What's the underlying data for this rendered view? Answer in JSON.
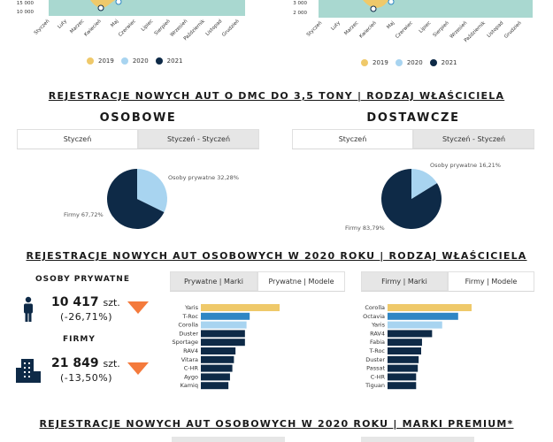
{
  "top_charts": {
    "left_y_ticks": [
      "15 000",
      "10 000"
    ],
    "right_y_ticks": [
      "3 000"
    ],
    "months": [
      "Styczeń",
      "Luty",
      "Marzec",
      "Kwiecień",
      "Maj",
      "Czerwiec",
      "Lipiec",
      "Sierpień",
      "Wrzesień",
      "Październik",
      "Listopad",
      "Grudzień"
    ],
    "legend": [
      "2019",
      "2020",
      "2021"
    ],
    "colors": {
      "y2019": "#efc96a",
      "y2020": "#a8d4f0",
      "y2021": "#0e2a47",
      "area": "#a9d8d0"
    }
  },
  "section1": {
    "title": "REJESTRACJE NOWYCH AUT O DMC DO 3,5 TONY | RODZAJ WŁAŚCICIELA",
    "left": {
      "title": "OSOBOWE",
      "tabs": [
        "Styczeń",
        "Styczeń - Styczeń"
      ],
      "active_tab": 0,
      "private_label": "Osoby prywatne 32,28%",
      "company_label": "Firmy 67,72%"
    },
    "right": {
      "title": "DOSTAWCZE",
      "tabs": [
        "Styczeń",
        "Styczeń - Styczeń"
      ],
      "active_tab": 0,
      "private_label": "Osoby prywatne 16,21%",
      "company_label": "Firmy 83,79%"
    }
  },
  "section2": {
    "title": "REJESTRACJE NOWYCH AUT OSOBOWYCH W 2020 ROKU | RODZAJ WŁAŚCICIELA",
    "private": {
      "heading": "OSOBY PRYWATNE",
      "value": "10 417",
      "unit": "szt.",
      "change": "(-26,71%)"
    },
    "companies": {
      "heading": "FIRMY",
      "value": "21 849",
      "unit": "szt.",
      "change": "(-13,50%)"
    },
    "left_tabs": [
      "Prywatne | Marki",
      "Prywatne | Modele"
    ],
    "left_active": 1,
    "right_tabs": [
      "Firmy | Marki",
      "Firmy | Modele"
    ],
    "right_active": 1
  },
  "section3": {
    "title": "REJESTRACJE NOWYCH AUT OSOBOWYCH W 2020 ROKU | MARKI PREMIUM*"
  },
  "chart_data": [
    {
      "type": "pie",
      "title": "OSOBOWE",
      "categories": [
        "Osoby prywatne",
        "Firmy"
      ],
      "values": [
        32.28,
        67.72
      ],
      "colors": [
        "#a8d4f0",
        "#0e2a47"
      ]
    },
    {
      "type": "pie",
      "title": "DOSTAWCZE",
      "categories": [
        "Osoby prywatne",
        "Firmy"
      ],
      "values": [
        16.21,
        83.79
      ],
      "colors": [
        "#a8d4f0",
        "#0e2a47"
      ]
    },
    {
      "type": "bar",
      "title": "Prywatne | Modele",
      "categories": [
        "Yaris",
        "T-Roc",
        "Corolla",
        "Duster",
        "Sportage",
        "RAV4",
        "Vitara",
        "C-HR",
        "Aygo",
        "Kamiq"
      ],
      "values": [
        100,
        62,
        58,
        56,
        56,
        44,
        42,
        40,
        37,
        35
      ],
      "colors": [
        "#efc96a",
        "#2f86c4",
        "#a8d4f0",
        "#0e2a47",
        "#0e2a47",
        "#0e2a47",
        "#0e2a47",
        "#0e2a47",
        "#0e2a47",
        "#0e2a47"
      ]
    },
    {
      "type": "bar",
      "title": "Firmy | Modele",
      "categories": [
        "Corolla",
        "Octavia",
        "Yaris",
        "RAV4",
        "Fabia",
        "T-Roc",
        "Duster",
        "Passat",
        "C-HR",
        "Tiguan"
      ],
      "values": [
        100,
        84,
        65,
        53,
        41,
        40,
        37,
        36,
        34,
        34
      ],
      "colors": [
        "#efc96a",
        "#2f86c4",
        "#a8d4f0",
        "#0e2a47",
        "#0e2a47",
        "#0e2a47",
        "#0e2a47",
        "#0e2a47",
        "#0e2a47",
        "#0e2a47"
      ]
    }
  ]
}
